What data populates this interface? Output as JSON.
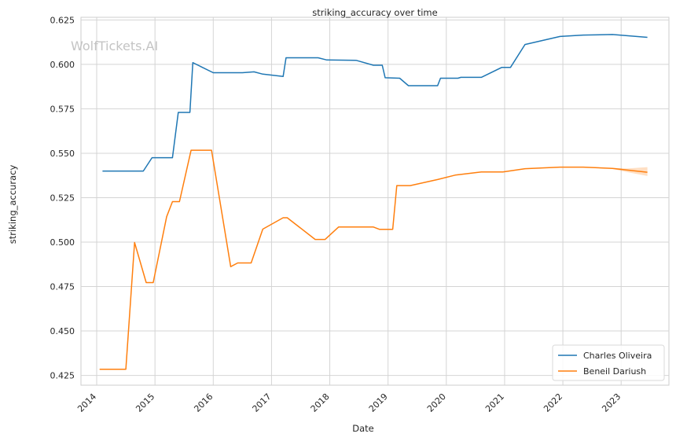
{
  "chart_data": {
    "type": "line",
    "title": "striking_accuracy over time",
    "xlabel": "Date",
    "ylabel": "striking_accuracy",
    "watermark": "WolfTickets.AI",
    "x_ticks": [
      "2014",
      "2015",
      "2016",
      "2017",
      "2018",
      "2019",
      "2020",
      "2021",
      "2022",
      "2023"
    ],
    "y_ticks": [
      "0.425",
      "0.450",
      "0.475",
      "0.500",
      "0.525",
      "0.550",
      "0.575",
      "0.600",
      "0.625"
    ],
    "xlim": [
      2013.73,
      2023.82
    ],
    "ylim": [
      0.4195,
      0.6265
    ],
    "grid": true,
    "legend_position": "bottom-right",
    "series": [
      {
        "name": "Charles Oliveira",
        "color": "#1f77b4",
        "points": [
          [
            2014.1,
            0.54
          ],
          [
            2014.8,
            0.54
          ],
          [
            2014.95,
            0.5475
          ],
          [
            2015.3,
            0.5475
          ],
          [
            2015.4,
            0.573
          ],
          [
            2015.6,
            0.573
          ],
          [
            2015.65,
            0.601
          ],
          [
            2016.0,
            0.5953
          ],
          [
            2016.5,
            0.5953
          ],
          [
            2016.7,
            0.5958
          ],
          [
            2016.85,
            0.5945
          ],
          [
            2017.2,
            0.5932
          ],
          [
            2017.25,
            0.6037
          ],
          [
            2017.8,
            0.6037
          ],
          [
            2017.95,
            0.6025
          ],
          [
            2018.45,
            0.6023
          ],
          [
            2018.75,
            0.5995
          ],
          [
            2018.9,
            0.5995
          ],
          [
            2018.95,
            0.5925
          ],
          [
            2019.2,
            0.5922
          ],
          [
            2019.35,
            0.588
          ],
          [
            2019.85,
            0.588
          ],
          [
            2019.9,
            0.5922
          ],
          [
            2020.2,
            0.5922
          ],
          [
            2020.25,
            0.5927
          ],
          [
            2020.6,
            0.5927
          ],
          [
            2020.95,
            0.5983
          ],
          [
            2021.1,
            0.5983
          ],
          [
            2021.35,
            0.6112
          ],
          [
            2021.95,
            0.6157
          ],
          [
            2022.35,
            0.6165
          ],
          [
            2022.85,
            0.6168
          ],
          [
            2023.45,
            0.6152
          ]
        ]
      },
      {
        "name": "Beneil Dariush",
        "color": "#ff7f0e",
        "points": [
          [
            2014.05,
            0.4285
          ],
          [
            2014.5,
            0.4285
          ],
          [
            2014.65,
            0.4998
          ],
          [
            2014.85,
            0.4772
          ],
          [
            2014.97,
            0.4772
          ],
          [
            2015.2,
            0.5143
          ],
          [
            2015.3,
            0.5228
          ],
          [
            2015.42,
            0.5228
          ],
          [
            2015.62,
            0.5517
          ],
          [
            2015.97,
            0.5517
          ],
          [
            2016.3,
            0.4862
          ],
          [
            2016.42,
            0.4883
          ],
          [
            2016.65,
            0.4883
          ],
          [
            2016.85,
            0.5073
          ],
          [
            2017.2,
            0.5137
          ],
          [
            2017.27,
            0.5137
          ],
          [
            2017.75,
            0.5015
          ],
          [
            2017.92,
            0.5015
          ],
          [
            2018.15,
            0.5085
          ],
          [
            2018.75,
            0.5085
          ],
          [
            2018.85,
            0.5072
          ],
          [
            2019.08,
            0.5072
          ],
          [
            2019.15,
            0.5318
          ],
          [
            2019.38,
            0.5318
          ],
          [
            2019.85,
            0.5352
          ],
          [
            2020.15,
            0.5377
          ],
          [
            2020.6,
            0.5395
          ],
          [
            2020.97,
            0.5395
          ],
          [
            2021.35,
            0.5413
          ],
          [
            2021.95,
            0.5422
          ],
          [
            2022.35,
            0.5422
          ],
          [
            2022.85,
            0.5415
          ],
          [
            2023.45,
            0.5393
          ]
        ],
        "band": [
          [
            2022.85,
            0.5412,
            0.5418
          ],
          [
            2023.1,
            0.5394,
            0.5414
          ],
          [
            2023.45,
            0.5372,
            0.5422
          ]
        ]
      }
    ]
  }
}
